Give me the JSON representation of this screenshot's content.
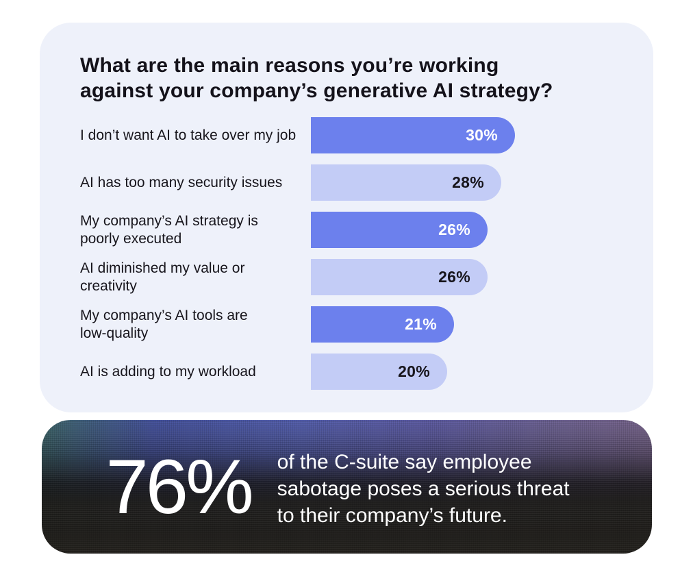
{
  "colors": {
    "page_bg": "#FFFFFF",
    "survey_card_bg": "#EEF1FA",
    "bar_dark": "#6C80ED",
    "bar_light": "#C3CCF6",
    "title_color": "#14121A",
    "label_color": "#17151C",
    "stat_text_color": "#FFFFFF",
    "stat_card_top_tint": "#47549E",
    "stat_card_bottom": "#232220"
  },
  "chart_data": {
    "type": "bar",
    "orientation": "horizontal",
    "title": "What are the main reasons you’re working against your company’s generative AI strategy?",
    "title_lines": [
      "What are the main reasons you’re working",
      "against your company’s generative AI strategy?"
    ],
    "unit": "%",
    "xlim": [
      0,
      30
    ],
    "grid": false,
    "legend": false,
    "categories": [
      "I don’t want AI to take over my job",
      "AI has too many security issues",
      "My company’s AI strategy is poorly executed",
      "AI diminished my value or creativity",
      "My company’s AI tools are low-quality",
      "AI is adding to my workload"
    ],
    "values": [
      30,
      28,
      26,
      26,
      21,
      20
    ],
    "rows": [
      {
        "label": "I don’t want AI to take over my job",
        "label_lines": [
          "I don’t want AI to take over my job"
        ],
        "value": 30,
        "value_label": "30%"
      },
      {
        "label": "AI has too many security issues",
        "label_lines": [
          "AI has too many security issues"
        ],
        "value": 28,
        "value_label": "28%"
      },
      {
        "label": "My company’s AI strategy is poorly executed",
        "label_lines": [
          "My company’s AI strategy is",
          "poorly executed"
        ],
        "value": 26,
        "value_label": "26%"
      },
      {
        "label": "AI diminished my value or creativity",
        "label_lines": [
          "AI diminished my value or",
          "creativity"
        ],
        "value": 26,
        "value_label": "26%"
      },
      {
        "label": "My company’s AI tools are low-quality",
        "label_lines": [
          "My company’s AI tools are",
          "low-quality"
        ],
        "value": 21,
        "value_label": "21%"
      },
      {
        "label": "AI is adding to my workload",
        "label_lines": [
          "AI is adding to my workload"
        ],
        "value": 20,
        "value_label": "20%"
      }
    ]
  },
  "stat_card": {
    "value": "76%",
    "text": "of the C-suite say employee sabotage poses a serious threat to their company’s future.",
    "text_lines": [
      "of the C-suite say employee",
      "sabotage poses a serious threat",
      "to their company’s future."
    ]
  }
}
